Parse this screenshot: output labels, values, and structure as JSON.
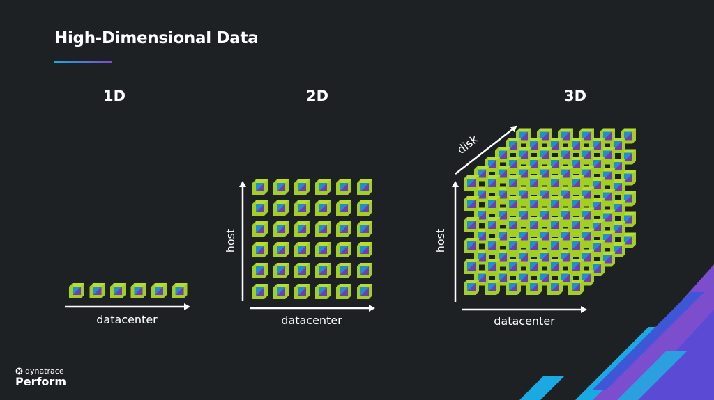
{
  "slide": {
    "title": "High-Dimensional Data",
    "accent_colors": [
      "#1aa9e2",
      "#7c4dcc"
    ]
  },
  "panels": [
    {
      "heading": "1D",
      "axes": [
        "datacenter"
      ],
      "grid": [
        6
      ]
    },
    {
      "heading": "2D",
      "axes": [
        "datacenter",
        "host"
      ],
      "grid": [
        6,
        6
      ]
    },
    {
      "heading": "3D",
      "axes": [
        "datacenter",
        "host",
        "disk"
      ],
      "grid": [
        6,
        6,
        6
      ]
    }
  ],
  "cube_colors": {
    "face": "#a3cf23",
    "inner_blue": "#1e8fd0",
    "inner_purple": "#6d3fb5",
    "edge": "#c6e63a"
  },
  "brand": {
    "company": "dynatrace",
    "event": "Perform",
    "icon": "dynatrace-logo-icon"
  },
  "decoration": {
    "stripe_colors": [
      "#7c4dcc",
      "#5b4bd4",
      "#1aa9e2",
      "#3f57d6"
    ]
  }
}
